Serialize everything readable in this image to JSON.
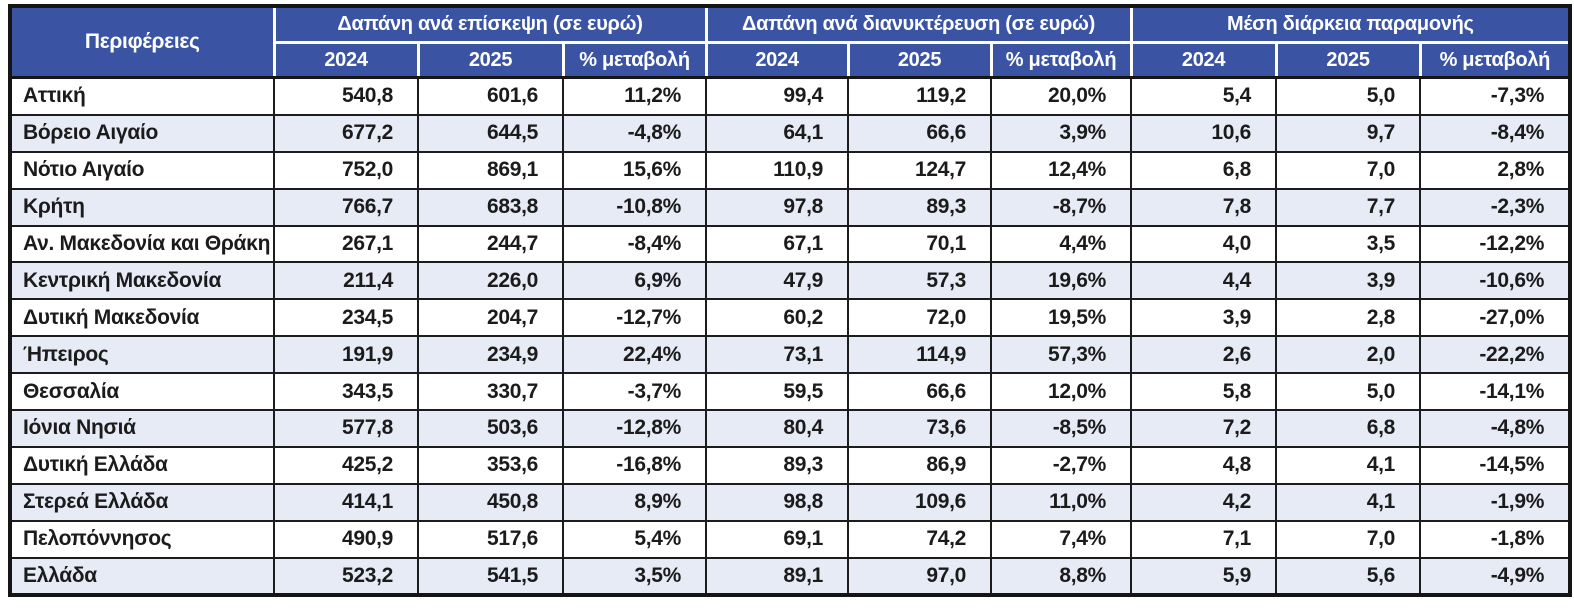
{
  "table": {
    "region_header": "Περιφέρειες",
    "groups": [
      {
        "label": "Δαπάνη ανά επίσκεψη (σε ευρώ)"
      },
      {
        "label": "Δαπάνη ανά διανυκτέρευση (σε ευρώ)"
      },
      {
        "label": "Μέση διάρκεια παραμονής"
      }
    ],
    "sub_headers": [
      "2024",
      "2025",
      "% μεταβολή"
    ],
    "rows": [
      {
        "region": "Αττική",
        "values": [
          "540,8",
          "601,6",
          "11,2%",
          "99,4",
          "119,2",
          "20,0%",
          "5,4",
          "5,0",
          "-7,3%"
        ]
      },
      {
        "region": "Βόρειο Αιγαίο",
        "values": [
          "677,2",
          "644,5",
          "-4,8%",
          "64,1",
          "66,6",
          "3,9%",
          "10,6",
          "9,7",
          "-8,4%"
        ]
      },
      {
        "region": "Νότιο Αιγαίο",
        "values": [
          "752,0",
          "869,1",
          "15,6%",
          "110,9",
          "124,7",
          "12,4%",
          "6,8",
          "7,0",
          "2,8%"
        ]
      },
      {
        "region": "Κρήτη",
        "values": [
          "766,7",
          "683,8",
          "-10,8%",
          "97,8",
          "89,3",
          "-8,7%",
          "7,8",
          "7,7",
          "-2,3%"
        ]
      },
      {
        "region": "Αν. Μακεδονία και Θράκη",
        "values": [
          "267,1",
          "244,7",
          "-8,4%",
          "67,1",
          "70,1",
          "4,4%",
          "4,0",
          "3,5",
          "-12,2%"
        ]
      },
      {
        "region": "Κεντρική Μακεδονία",
        "values": [
          "211,4",
          "226,0",
          "6,9%",
          "47,9",
          "57,3",
          "19,6%",
          "4,4",
          "3,9",
          "-10,6%"
        ]
      },
      {
        "region": "Δυτική Μακεδονία",
        "values": [
          "234,5",
          "204,7",
          "-12,7%",
          "60,2",
          "72,0",
          "19,5%",
          "3,9",
          "2,8",
          "-27,0%"
        ]
      },
      {
        "region": "Ήπειρος",
        "values": [
          "191,9",
          "234,9",
          "22,4%",
          "73,1",
          "114,9",
          "57,3%",
          "2,6",
          "2,0",
          "-22,2%"
        ]
      },
      {
        "region": "Θεσσαλία",
        "values": [
          "343,5",
          "330,7",
          "-3,7%",
          "59,5",
          "66,6",
          "12,0%",
          "5,8",
          "5,0",
          "-14,1%"
        ]
      },
      {
        "region": "Ιόνια Νησιά",
        "values": [
          "577,8",
          "503,6",
          "-12,8%",
          "80,4",
          "73,6",
          "-8,5%",
          "7,2",
          "6,8",
          "-4,8%"
        ]
      },
      {
        "region": "Δυτική Ελλάδα",
        "values": [
          "425,2",
          "353,6",
          "-16,8%",
          "89,3",
          "86,9",
          "-2,7%",
          "4,8",
          "4,1",
          "-14,5%"
        ]
      },
      {
        "region": "Στερεά Ελλάδα",
        "values": [
          "414,1",
          "450,8",
          "8,9%",
          "98,8",
          "109,6",
          "11,0%",
          "4,2",
          "4,1",
          "-1,9%"
        ]
      },
      {
        "region": "Πελοπόννησος",
        "values": [
          "490,9",
          "517,6",
          "5,4%",
          "69,1",
          "74,2",
          "7,4%",
          "7,1",
          "7,0",
          "-1,8%"
        ]
      },
      {
        "region": "Ελλάδα",
        "values": [
          "523,2",
          "541,5",
          "3,5%",
          "89,1",
          "97,0",
          "8,8%",
          "5,9",
          "5,6",
          "-4,9%"
        ]
      }
    ]
  },
  "colors": {
    "header_bg": "#3A53A3",
    "header_text": "#FFFFFF",
    "stripe_bg": "#E7EBF5",
    "border": "#151515",
    "body_text": "#1B1B1B"
  },
  "chart_data": {
    "type": "table",
    "title": "",
    "column_groups": [
      "Δαπάνη ανά επίσκεψη (σε ευρώ)",
      "Δαπάνη ανά διανυκτέρευση (σε ευρώ)",
      "Μέση διάρκεια παραμονής"
    ],
    "columns": [
      "Περιφέρειες",
      "Δαπάνη ανά επίσκεψη 2024",
      "Δαπάνη ανά επίσκεψη 2025",
      "Δαπάνη ανά επίσκεψη % μεταβολή",
      "Δαπάνη ανά διανυκτέρευση 2024",
      "Δαπάνη ανά διανυκτέρευση 2025",
      "Δαπάνη ανά διανυκτέρευση % μεταβολή",
      "Μέση διάρκεια παραμονής 2024",
      "Μέση διάρκεια παραμονής 2025",
      "Μέση διάρκεια παραμονής % μεταβολή"
    ],
    "rows": [
      [
        "Αττική",
        540.8,
        601.6,
        11.2,
        99.4,
        119.2,
        20.0,
        5.4,
        5.0,
        -7.3
      ],
      [
        "Βόρειο Αιγαίο",
        677.2,
        644.5,
        -4.8,
        64.1,
        66.6,
        3.9,
        10.6,
        9.7,
        -8.4
      ],
      [
        "Νότιο Αιγαίο",
        752.0,
        869.1,
        15.6,
        110.9,
        124.7,
        12.4,
        6.8,
        7.0,
        2.8
      ],
      [
        "Κρήτη",
        766.7,
        683.8,
        -10.8,
        97.8,
        89.3,
        -8.7,
        7.8,
        7.7,
        -2.3
      ],
      [
        "Αν. Μακεδονία και Θράκη",
        267.1,
        244.7,
        -8.4,
        67.1,
        70.1,
        4.4,
        4.0,
        3.5,
        -12.2
      ],
      [
        "Κεντρική Μακεδονία",
        211.4,
        226.0,
        6.9,
        47.9,
        57.3,
        19.6,
        4.4,
        3.9,
        -10.6
      ],
      [
        "Δυτική Μακεδονία",
        234.5,
        204.7,
        -12.7,
        60.2,
        72.0,
        19.5,
        3.9,
        2.8,
        -27.0
      ],
      [
        "Ήπειρος",
        191.9,
        234.9,
        22.4,
        73.1,
        114.9,
        57.3,
        2.6,
        2.0,
        -22.2
      ],
      [
        "Θεσσαλία",
        343.5,
        330.7,
        -3.7,
        59.5,
        66.6,
        12.0,
        5.8,
        5.0,
        -14.1
      ],
      [
        "Ιόνια Νησιά",
        577.8,
        503.6,
        -12.8,
        80.4,
        73.6,
        -8.5,
        7.2,
        6.8,
        -4.8
      ],
      [
        "Δυτική Ελλάδα",
        425.2,
        353.6,
        -16.8,
        89.3,
        86.9,
        -2.7,
        4.8,
        4.1,
        -14.5
      ],
      [
        "Στερεά Ελλάδα",
        414.1,
        450.8,
        8.9,
        98.8,
        109.6,
        11.0,
        4.2,
        4.1,
        -1.9
      ],
      [
        "Πελοπόννησος",
        490.9,
        517.6,
        5.4,
        69.1,
        74.2,
        7.4,
        7.1,
        7.0,
        -1.8
      ],
      [
        "Ελλάδα",
        523.2,
        541.5,
        3.5,
        89.1,
        97.0,
        8.8,
        5.9,
        5.6,
        -4.9
      ]
    ]
  }
}
